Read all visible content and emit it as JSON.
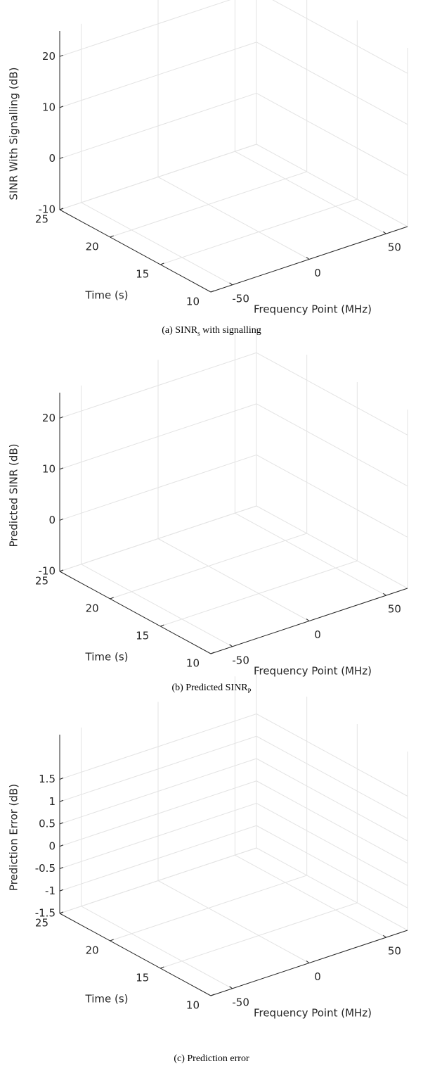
{
  "chart_data": [
    {
      "type": "surface",
      "zlabel": "SINR With Signalling (dB)",
      "ylabel": "Time (s)",
      "xlabel": "Frequency Point (MHz)",
      "xlim": [
        -64,
        64
      ],
      "xticks": [
        -50,
        0,
        50
      ],
      "ylim": [
        10,
        25
      ],
      "yticks": [
        10,
        15,
        20,
        25
      ],
      "zlim": [
        -10,
        25
      ],
      "zticks": [
        -10,
        0,
        10,
        20
      ],
      "grid": true,
      "caption": {
        "pre": "(a) SINR",
        "sub": "s",
        "post": " with signalling"
      }
    },
    {
      "type": "surface",
      "zlabel": "Predicted SINR (dB)",
      "ylabel": "Time (s)",
      "xlabel": "Frequency Point (MHz)",
      "xlim": [
        -64,
        64
      ],
      "xticks": [
        -50,
        0,
        50
      ],
      "ylim": [
        10,
        25
      ],
      "yticks": [
        10,
        15,
        20,
        25
      ],
      "zlim": [
        -10,
        25
      ],
      "zticks": [
        -10,
        0,
        10,
        20
      ],
      "grid": true,
      "caption": {
        "pre": "(b) Predicted SINR",
        "sub": "P",
        "post": ""
      }
    },
    {
      "type": "surface",
      "zlabel": "Prediction Error (dB)",
      "ylabel": "Time (s)",
      "xlabel": "Frequency Point (MHz)",
      "xlim": [
        -64,
        64
      ],
      "xticks": [
        -50,
        0,
        50
      ],
      "ylim": [
        10,
        25
      ],
      "yticks": [
        10,
        15,
        20,
        25
      ],
      "zlim": [
        -1.5,
        2.5
      ],
      "zticks": [
        -1.5,
        -1,
        -0.5,
        0,
        0.5,
        1,
        1.5
      ],
      "grid": true,
      "caption": {
        "pre": "(c) Prediction error",
        "sub": "",
        "post": ""
      }
    }
  ]
}
